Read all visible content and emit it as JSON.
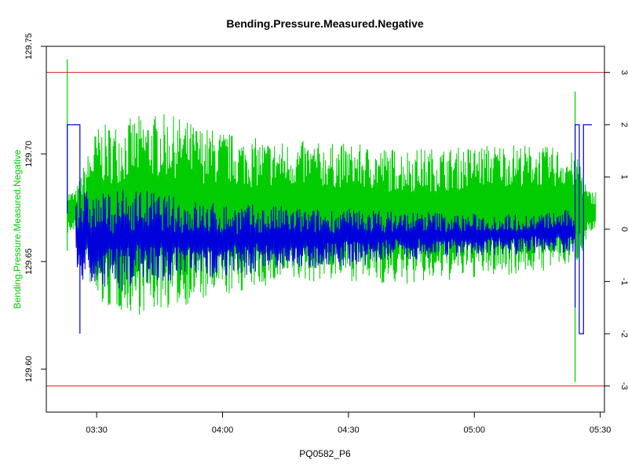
{
  "chart_data": {
    "type": "line",
    "title": "Bending.Pressure.Measured.Negative",
    "xlabel": "PQ0582_P6",
    "ylabel": "Bending.Pressure.Measured.Negative",
    "x_axis": {
      "type": "time",
      "range": [
        "03:18",
        "05:31"
      ],
      "ticks": [
        "03:30",
        "04:00",
        "04:30",
        "05:00",
        "05:30"
      ]
    },
    "y_left": {
      "range": [
        129.58,
        129.75
      ],
      "ticks": [
        "129.60",
        "129.65",
        "129.70",
        "129.75"
      ]
    },
    "y_right": {
      "range": [
        -3.5,
        3.5
      ],
      "ticks": [
        "-3",
        "-2",
        "-1",
        "0",
        "1",
        "2",
        "3"
      ]
    },
    "reference_lines": [
      {
        "axis": "right",
        "value": 3,
        "color": "#e03030"
      },
      {
        "axis": "right",
        "value": -3,
        "color": "#e03030"
      }
    ],
    "series": [
      {
        "axis": "left",
        "color": "#00cc00",
        "x": [
          "03:23",
          "03:25",
          "03:30",
          "03:35",
          "03:40",
          "03:45",
          "03:50",
          "03:55",
          "04:00",
          "04:05",
          "04:10",
          "04:15",
          "04:20",
          "04:25",
          "04:30",
          "04:35",
          "04:40",
          "04:45",
          "04:50",
          "04:55",
          "05:00",
          "05:05",
          "05:10",
          "05:15",
          "05:20",
          "05:25",
          "05:27",
          "05:29"
        ],
        "upper": [
          129.683,
          129.683,
          129.713,
          129.715,
          129.718,
          129.719,
          129.717,
          129.713,
          129.711,
          129.708,
          129.707,
          129.706,
          129.706,
          129.705,
          129.705,
          129.704,
          129.703,
          129.703,
          129.703,
          129.703,
          129.704,
          129.705,
          129.705,
          129.704,
          129.703,
          129.7,
          129.683,
          129.683
        ],
        "lower": [
          129.663,
          129.663,
          129.628,
          129.627,
          129.625,
          129.627,
          129.629,
          129.631,
          129.633,
          129.636,
          129.638,
          129.639,
          129.64,
          129.641,
          129.641,
          129.64,
          129.639,
          129.639,
          129.64,
          129.641,
          129.642,
          129.643,
          129.644,
          129.645,
          129.646,
          129.65,
          129.663,
          129.663
        ],
        "spikes": [
          {
            "x": "03:23",
            "y": 129.744
          },
          {
            "x": "03:23",
            "y": 129.655
          },
          {
            "x": "05:24",
            "y": 129.729
          },
          {
            "x": "05:24",
            "y": 129.594
          }
        ]
      },
      {
        "axis": "right",
        "color": "#0000dd",
        "x": [
          "03:25",
          "03:30",
          "03:35",
          "03:40",
          "03:45",
          "03:50",
          "03:55",
          "04:00",
          "04:05",
          "04:10",
          "04:15",
          "04:20",
          "04:25",
          "04:30",
          "04:35",
          "04:40",
          "04:45",
          "04:50",
          "04:55",
          "05:00",
          "05:05",
          "05:10",
          "05:15",
          "05:20",
          "05:24"
        ],
        "upper": [
          0.8,
          0.7,
          0.75,
          0.8,
          0.7,
          0.6,
          0.55,
          0.5,
          0.5,
          0.45,
          0.45,
          0.4,
          0.4,
          0.4,
          0.4,
          0.35,
          0.35,
          0.35,
          0.3,
          0.3,
          0.3,
          0.3,
          0.3,
          0.35,
          0.4
        ],
        "lower": [
          -1.0,
          -1.1,
          -1.2,
          -1.1,
          -1.0,
          -1.0,
          -1.0,
          -0.9,
          -0.9,
          -0.8,
          -0.8,
          -0.8,
          -0.7,
          -0.7,
          -0.7,
          -0.6,
          -0.6,
          -0.55,
          -0.55,
          -0.5,
          -0.5,
          -0.5,
          -0.45,
          -0.45,
          -0.5
        ],
        "step_start": [
          {
            "x": "03:23",
            "y": 0.3
          },
          {
            "x": "03:23",
            "y": 2
          },
          {
            "x": "03:26",
            "y": 2
          },
          {
            "x": "03:26",
            "y": -2
          },
          {
            "x": "03:26",
            "y": 0.5
          }
        ],
        "step_end": [
          {
            "x": "05:24",
            "y": 0.3
          },
          {
            "x": "05:24",
            "y": -1.5
          },
          {
            "x": "05:24",
            "y": 2
          },
          {
            "x": "05:25",
            "y": 2
          },
          {
            "x": "05:25",
            "y": -2
          },
          {
            "x": "05:26",
            "y": -2
          },
          {
            "x": "05:26",
            "y": 2
          },
          {
            "x": "05:28",
            "y": 2
          }
        ]
      }
    ],
    "grid": false,
    "legend": "none"
  }
}
